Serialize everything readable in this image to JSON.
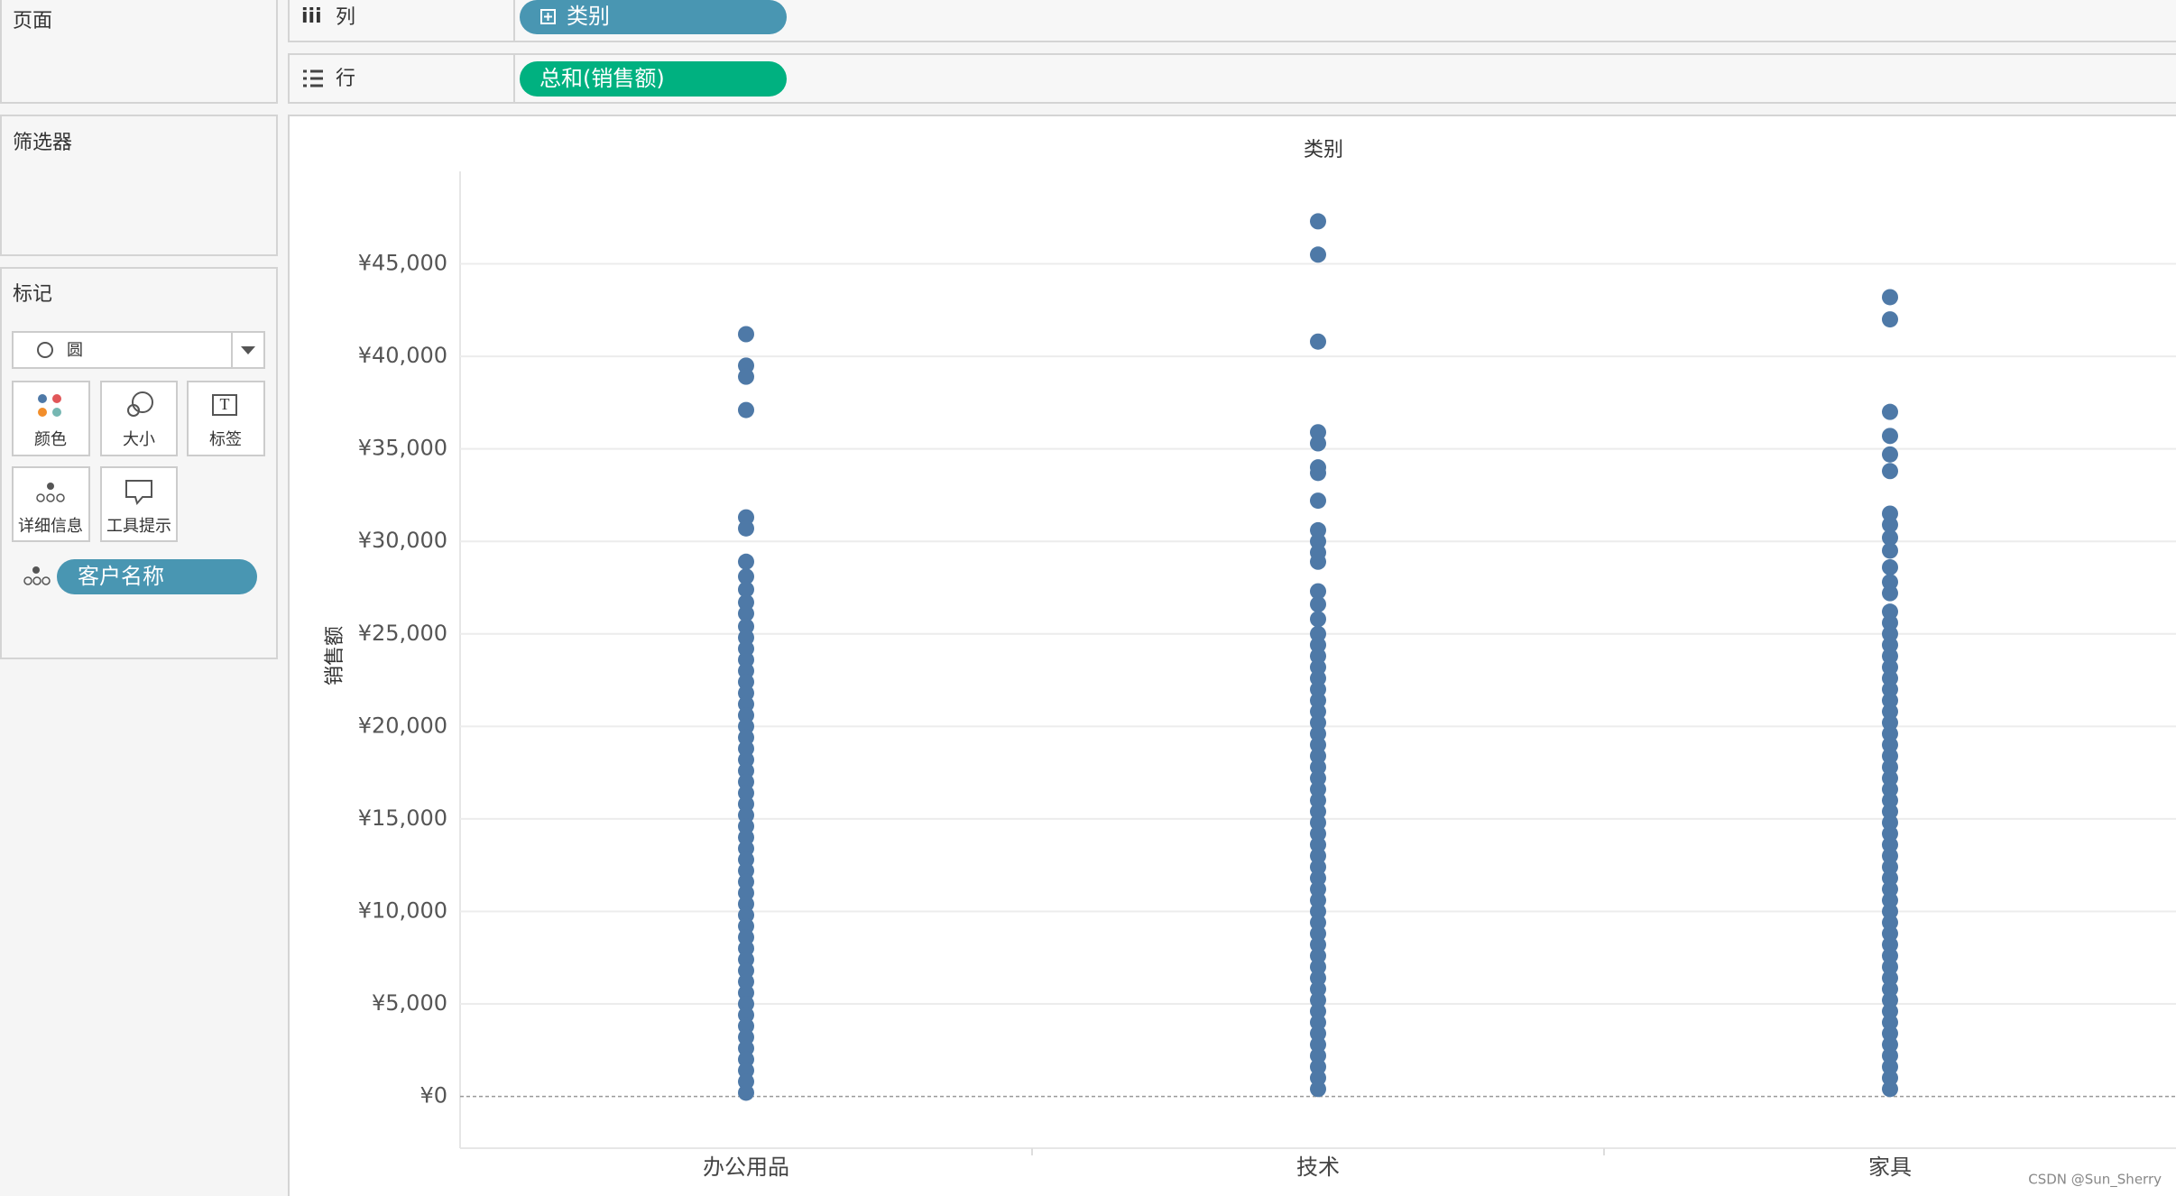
{
  "ui": {
    "pages_title": "页面",
    "filters_title": "筛选器",
    "marks_title": "标记",
    "mark_type": "圆",
    "mark_buttons": [
      "颜色",
      "大小",
      "标签",
      "详细信息",
      "工具提示"
    ],
    "detail_pill": "客户名称",
    "columns_label": "列",
    "columns_pill": "类别",
    "rows_label": "行",
    "rows_pill": "总和(销售额)",
    "watermark": "CSDN @Sun_Sherry"
  },
  "chart_data": {
    "type": "strip",
    "title": "类别",
    "y_label": "销售额",
    "color": "#4e79a7",
    "grid": true,
    "categories": [
      "办公用品",
      "技术",
      "家具"
    ],
    "values": [
      [
        41200,
        39500,
        38900,
        37100,
        31300,
        30700,
        28900,
        28100,
        27400,
        26700,
        26100,
        25400,
        24800,
        24200,
        23600,
        23000,
        22400,
        21800,
        21200,
        20600,
        20000,
        19400,
        18800,
        18200,
        17600,
        17000,
        16400,
        15800,
        15200,
        14600,
        14000,
        13400,
        12800,
        12200,
        11600,
        11000,
        10400,
        9800,
        9200,
        8600,
        8000,
        7400,
        6800,
        6200,
        5600,
        5000,
        4400,
        3800,
        3200,
        2600,
        2000,
        1400,
        800,
        200
      ],
      [
        47300,
        45500,
        40800,
        35900,
        35300,
        34000,
        33700,
        32200,
        30600,
        30000,
        29400,
        28900,
        27300,
        26600,
        25800,
        25000,
        24400,
        23800,
        23200,
        22600,
        22000,
        21400,
        20800,
        20200,
        19600,
        19000,
        18400,
        17800,
        17200,
        16600,
        16000,
        15400,
        14800,
        14200,
        13600,
        13000,
        12400,
        11800,
        11200,
        10600,
        10000,
        9400,
        8800,
        8200,
        7600,
        7000,
        6400,
        5800,
        5200,
        4600,
        4000,
        3400,
        2800,
        2200,
        1600,
        1000,
        400
      ],
      [
        43200,
        42000,
        37000,
        35700,
        34700,
        33800,
        31500,
        30900,
        30200,
        29500,
        28600,
        27800,
        27200,
        26200,
        25600,
        25000,
        24400,
        23800,
        23200,
        22600,
        22000,
        21400,
        20800,
        20200,
        19600,
        19000,
        18400,
        17800,
        17200,
        16600,
        16000,
        15400,
        14800,
        14200,
        13600,
        13000,
        12400,
        11800,
        11200,
        10600,
        10000,
        9400,
        8800,
        8200,
        7600,
        7000,
        6400,
        5800,
        5200,
        4600,
        4000,
        3400,
        2800,
        2200,
        1600,
        1000,
        400
      ]
    ],
    "ylim": [
      -2800,
      50000
    ],
    "yticks": [
      {
        "value": 0,
        "label": "¥0"
      },
      {
        "value": 5000,
        "label": "¥5,000"
      },
      {
        "value": 10000,
        "label": "¥10,000"
      },
      {
        "value": 15000,
        "label": "¥15,000"
      },
      {
        "value": 20000,
        "label": "¥20,000"
      },
      {
        "value": 25000,
        "label": "¥25,000"
      },
      {
        "value": 30000,
        "label": "¥30,000"
      },
      {
        "value": 35000,
        "label": "¥35,000"
      },
      {
        "value": 40000,
        "label": "¥40,000"
      },
      {
        "value": 45000,
        "label": "¥45,000"
      }
    ]
  }
}
